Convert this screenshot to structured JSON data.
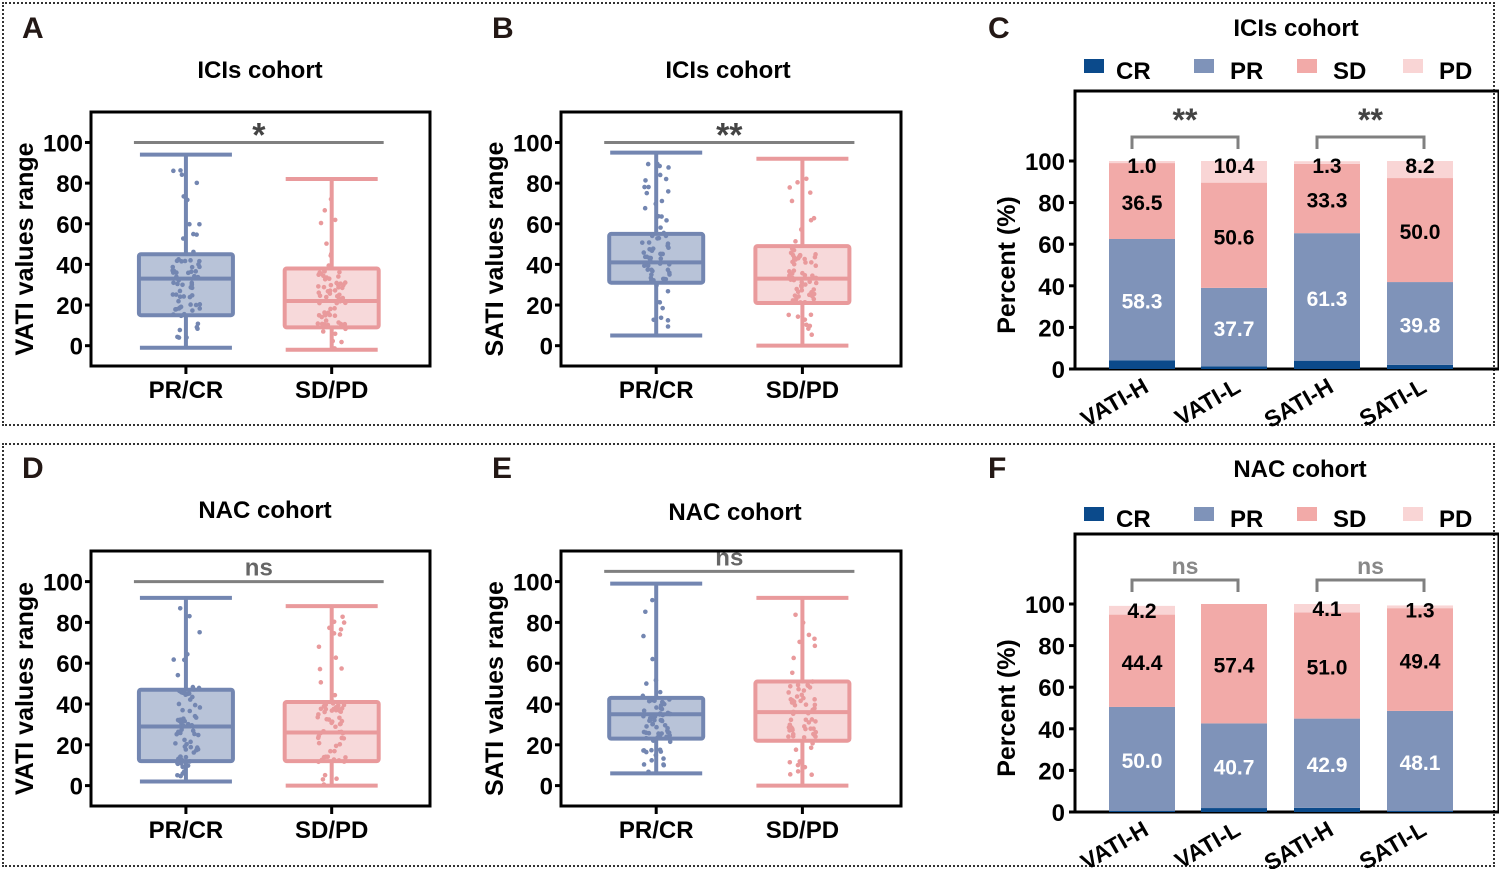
{
  "colors": {
    "CR": "#0b4a8b",
    "PR": "#7f93b9",
    "SD": "#f2aaa8",
    "PD": "#f9d5d5",
    "box_blue_fill": "#b8c3d8",
    "box_blue_line": "#7386b1",
    "box_red_fill": "#f7d9da",
    "box_red_line": "#e99a9c",
    "sig": "#808080"
  },
  "chart_data": [
    {
      "id": "A",
      "panel_label": "A",
      "type": "box",
      "title": "ICIs cohort",
      "ylabel": "VATI values range",
      "ylim": [
        -10,
        115
      ],
      "yticks": [
        0,
        20,
        40,
        60,
        80,
        100
      ],
      "categories": [
        "PR/CR",
        "SD/PD"
      ],
      "boxes": [
        {
          "name": "PR/CR",
          "min": -1,
          "q1": 15,
          "median": 33,
          "q3": 45,
          "max": 94,
          "color": "blue"
        },
        {
          "name": "SD/PD",
          "min": -2,
          "q1": 9,
          "median": 22,
          "q3": 38,
          "max": 82,
          "color": "red"
        }
      ],
      "significance": {
        "label": "*",
        "y": 100
      }
    },
    {
      "id": "B",
      "panel_label": "B",
      "type": "box",
      "title": "ICIs cohort",
      "ylabel": "SATI values range",
      "ylim": [
        -10,
        115
      ],
      "yticks": [
        0,
        20,
        40,
        60,
        80,
        100
      ],
      "categories": [
        "PR/CR",
        "SD/PD"
      ],
      "boxes": [
        {
          "name": "PR/CR",
          "min": 5,
          "q1": 31,
          "median": 41,
          "q3": 55,
          "max": 95,
          "color": "blue"
        },
        {
          "name": "SD/PD",
          "min": 0,
          "q1": 21,
          "median": 33,
          "q3": 49,
          "max": 92,
          "color": "red"
        }
      ],
      "significance": {
        "label": "**",
        "y": 100
      }
    },
    {
      "id": "C",
      "panel_label": "C",
      "type": "bar",
      "stacked": true,
      "title": "ICIs cohort",
      "ylabel": "Percent (%)",
      "ylim": [
        0,
        100
      ],
      "yticks": [
        0,
        20,
        40,
        60,
        80,
        100
      ],
      "legend": [
        "CR",
        "PR",
        "SD",
        "PD"
      ],
      "legend_position": "top",
      "categories": [
        "VATI-H",
        "VATI-L",
        "SATI-H",
        "SATI-L"
      ],
      "series": [
        {
          "name": "CR",
          "values": [
            4.2,
            1.3,
            4.0,
            2.0
          ]
        },
        {
          "name": "PR",
          "values": [
            58.3,
            37.7,
            61.3,
            39.8
          ]
        },
        {
          "name": "SD",
          "values": [
            36.5,
            50.6,
            33.3,
            50.0
          ]
        },
        {
          "name": "PD",
          "values": [
            1.0,
            10.4,
            1.3,
            8.2
          ]
        }
      ],
      "labels": [
        [
          {
            "series": "PR",
            "text": "58.3"
          },
          {
            "series": "SD",
            "text": "36.5"
          },
          {
            "series": "PD",
            "text": "1.0"
          }
        ],
        [
          {
            "series": "PR",
            "text": "37.7"
          },
          {
            "series": "SD",
            "text": "50.6"
          },
          {
            "series": "PD",
            "text": "10.4"
          }
        ],
        [
          {
            "series": "PR",
            "text": "61.3"
          },
          {
            "series": "SD",
            "text": "33.3"
          },
          {
            "series": "PD",
            "text": "1.3"
          }
        ],
        [
          {
            "series": "PR",
            "text": "39.8"
          },
          {
            "series": "SD",
            "text": "50.0"
          },
          {
            "series": "PD",
            "text": "8.2"
          }
        ]
      ],
      "significance": [
        {
          "from": 0,
          "to": 1,
          "label": "**"
        },
        {
          "from": 2,
          "to": 3,
          "label": "**"
        }
      ]
    },
    {
      "id": "D",
      "panel_label": "D",
      "type": "box",
      "title": "NAC cohort",
      "ylabel": "VATI values range",
      "ylim": [
        -10,
        115
      ],
      "yticks": [
        0,
        20,
        40,
        60,
        80,
        100
      ],
      "categories": [
        "PR/CR",
        "SD/PD"
      ],
      "boxes": [
        {
          "name": "PR/CR",
          "min": 2,
          "q1": 12,
          "median": 29,
          "q3": 47,
          "max": 92,
          "color": "blue"
        },
        {
          "name": "SD/PD",
          "min": 0,
          "q1": 12,
          "median": 26,
          "q3": 41,
          "max": 88,
          "color": "red"
        }
      ],
      "significance": {
        "label": "ns",
        "y": 100
      }
    },
    {
      "id": "E",
      "panel_label": "E",
      "type": "box",
      "title": "NAC cohort",
      "ylabel": "SATI values range",
      "ylim": [
        -10,
        115
      ],
      "yticks": [
        0,
        20,
        40,
        60,
        80,
        100
      ],
      "categories": [
        "PR/CR",
        "SD/PD"
      ],
      "boxes": [
        {
          "name": "PR/CR",
          "min": 6,
          "q1": 23,
          "median": 35,
          "q3": 43,
          "max": 99,
          "color": "blue"
        },
        {
          "name": "SD/PD",
          "min": 0,
          "q1": 22,
          "median": 36,
          "q3": 51,
          "max": 92,
          "color": "red"
        }
      ],
      "significance": {
        "label": "ns",
        "y": 105
      }
    },
    {
      "id": "F",
      "panel_label": "F",
      "type": "bar",
      "stacked": true,
      "title": "NAC  cohort",
      "ylabel": "Percent (%)",
      "ylim": [
        0,
        100
      ],
      "yticks": [
        0,
        20,
        40,
        60,
        80,
        100
      ],
      "legend": [
        "CR",
        "PR",
        "SD",
        "PD"
      ],
      "legend_position": "top",
      "categories": [
        "VATI-H",
        "VATI-L",
        "SATI-H",
        "SATI-L"
      ],
      "series": [
        {
          "name": "CR",
          "values": [
            0.5,
            1.9,
            2.0,
            0.5
          ]
        },
        {
          "name": "PR",
          "values": [
            50.0,
            40.7,
            42.9,
            48.1
          ]
        },
        {
          "name": "SD",
          "values": [
            44.4,
            57.4,
            51.0,
            49.4
          ]
        },
        {
          "name": "PD",
          "values": [
            4.2,
            0.0,
            4.1,
            1.3
          ]
        }
      ],
      "labels": [
        [
          {
            "series": "PR",
            "text": "50.0"
          },
          {
            "series": "SD",
            "text": "44.4"
          },
          {
            "series": "PD",
            "text": "4.2"
          }
        ],
        [
          {
            "series": "PR",
            "text": "40.7"
          },
          {
            "series": "SD",
            "text": "57.4"
          }
        ],
        [
          {
            "series": "PR",
            "text": "42.9"
          },
          {
            "series": "SD",
            "text": "51.0"
          },
          {
            "series": "PD",
            "text": "4.1"
          }
        ],
        [
          {
            "series": "PR",
            "text": "48.1"
          },
          {
            "series": "SD",
            "text": "49.4"
          },
          {
            "series": "PD",
            "text": "1.3"
          }
        ]
      ],
      "significance": [
        {
          "from": 0,
          "to": 1,
          "label": "ns"
        },
        {
          "from": 2,
          "to": 3,
          "label": "ns"
        }
      ]
    }
  ]
}
